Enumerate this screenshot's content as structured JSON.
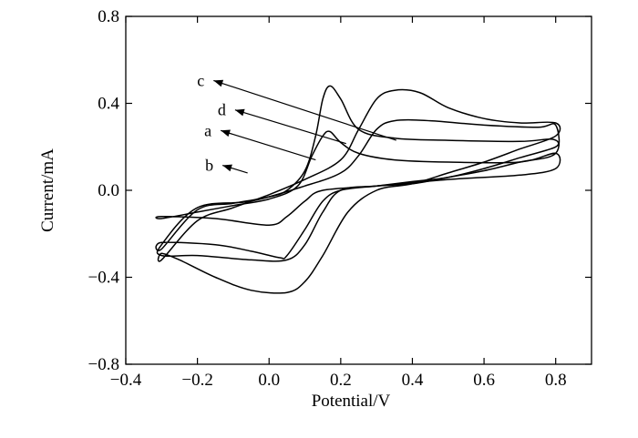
{
  "chart_data": {
    "type": "line",
    "xlabel": "Potential/V",
    "ylabel": "Current/mA",
    "xlim": [
      -0.4,
      0.9
    ],
    "ylim": [
      -0.8,
      0.8
    ],
    "x_ticks": [
      -0.4,
      -0.2,
      0.0,
      0.2,
      0.4,
      0.6,
      0.8
    ],
    "x_tick_labels": [
      "−0.4",
      "−0.2",
      "0.0",
      "0.2",
      "0.4",
      "0.6",
      "0.8"
    ],
    "y_ticks": [
      -0.8,
      -0.4,
      0.0,
      0.4,
      0.8
    ],
    "y_tick_labels": [
      "−0.8",
      "−0.4",
      "0.0",
      "0.4",
      "0.8"
    ],
    "grid": false,
    "legend": "none",
    "line_color": "#000000",
    "series": [
      {
        "name": "c",
        "label_point": [
          -0.155,
          0.505
        ],
        "points": [
          [
            -0.3,
            -0.27
          ],
          [
            -0.2,
            -0.09
          ],
          [
            -0.1,
            -0.06
          ],
          [
            0.0,
            -0.03
          ],
          [
            0.05,
            0.0
          ],
          [
            0.1,
            0.09
          ],
          [
            0.13,
            0.25
          ],
          [
            0.15,
            0.42
          ],
          [
            0.17,
            0.48
          ],
          [
            0.2,
            0.42
          ],
          [
            0.25,
            0.28
          ],
          [
            0.35,
            0.24
          ],
          [
            0.5,
            0.23
          ],
          [
            0.7,
            0.225
          ],
          [
            0.79,
            0.235
          ],
          [
            0.8,
            0.2
          ],
          [
            0.7,
            0.15
          ],
          [
            0.6,
            0.1
          ],
          [
            0.5,
            0.06
          ],
          [
            0.4,
            0.04
          ],
          [
            0.3,
            0.02
          ],
          [
            0.2,
            0.0
          ],
          [
            0.15,
            -0.05
          ],
          [
            0.1,
            -0.18
          ],
          [
            0.05,
            -0.3
          ],
          [
            0.03,
            -0.31
          ],
          [
            -0.05,
            -0.28
          ],
          [
            -0.15,
            -0.25
          ],
          [
            -0.3,
            -0.24
          ]
        ]
      },
      {
        "name": "d",
        "label_point": [
          -0.095,
          0.37
        ],
        "points": [
          [
            -0.3,
            -0.25
          ],
          [
            -0.2,
            -0.08
          ],
          [
            -0.05,
            -0.05
          ],
          [
            0.1,
            0.02
          ],
          [
            0.2,
            0.08
          ],
          [
            0.25,
            0.16
          ],
          [
            0.3,
            0.28
          ],
          [
            0.35,
            0.32
          ],
          [
            0.45,
            0.32
          ],
          [
            0.6,
            0.3
          ],
          [
            0.75,
            0.29
          ],
          [
            0.8,
            0.3
          ],
          [
            0.8,
            0.17
          ],
          [
            0.7,
            0.13
          ],
          [
            0.6,
            0.09
          ],
          [
            0.5,
            0.06
          ],
          [
            0.4,
            0.03
          ],
          [
            0.3,
            0.02
          ],
          [
            0.2,
            0.0
          ],
          [
            0.15,
            -0.1
          ],
          [
            0.1,
            -0.25
          ],
          [
            0.05,
            -0.32
          ],
          [
            -0.05,
            -0.32
          ],
          [
            -0.2,
            -0.3
          ],
          [
            -0.3,
            -0.3
          ]
        ]
      },
      {
        "name": "a",
        "label_point": [
          -0.135,
          0.275
        ],
        "points": [
          [
            -0.3,
            -0.13
          ],
          [
            -0.2,
            -0.1
          ],
          [
            -0.1,
            -0.07
          ],
          [
            0.0,
            -0.04
          ],
          [
            0.08,
            0.02
          ],
          [
            0.12,
            0.16
          ],
          [
            0.15,
            0.25
          ],
          [
            0.17,
            0.27
          ],
          [
            0.2,
            0.22
          ],
          [
            0.25,
            0.17
          ],
          [
            0.35,
            0.14
          ],
          [
            0.5,
            0.13
          ],
          [
            0.7,
            0.13
          ],
          [
            0.8,
            0.17
          ],
          [
            0.8,
            0.1
          ],
          [
            0.7,
            0.07
          ],
          [
            0.5,
            0.05
          ],
          [
            0.3,
            0.02
          ],
          [
            0.15,
            0.0
          ],
          [
            0.1,
            -0.05
          ],
          [
            0.05,
            -0.12
          ],
          [
            0.0,
            -0.16
          ],
          [
            -0.15,
            -0.13
          ],
          [
            -0.3,
            -0.12
          ]
        ]
      },
      {
        "name": "b",
        "label_point": [
          -0.13,
          0.115
        ],
        "points": [
          [
            -0.3,
            -0.32
          ],
          [
            -0.2,
            -0.14
          ],
          [
            -0.1,
            -0.08
          ],
          [
            0.0,
            -0.02
          ],
          [
            0.1,
            0.05
          ],
          [
            0.2,
            0.14
          ],
          [
            0.25,
            0.28
          ],
          [
            0.3,
            0.42
          ],
          [
            0.35,
            0.46
          ],
          [
            0.42,
            0.45
          ],
          [
            0.5,
            0.38
          ],
          [
            0.6,
            0.33
          ],
          [
            0.7,
            0.31
          ],
          [
            0.8,
            0.31
          ],
          [
            0.8,
            0.25
          ],
          [
            0.7,
            0.19
          ],
          [
            0.6,
            0.13
          ],
          [
            0.5,
            0.08
          ],
          [
            0.4,
            0.03
          ],
          [
            0.3,
            0.0
          ],
          [
            0.22,
            -0.1
          ],
          [
            0.15,
            -0.3
          ],
          [
            0.1,
            -0.42
          ],
          [
            0.05,
            -0.47
          ],
          [
            -0.05,
            -0.46
          ],
          [
            -0.15,
            -0.4
          ],
          [
            -0.25,
            -0.32
          ],
          [
            -0.3,
            -0.29
          ]
        ]
      }
    ]
  }
}
